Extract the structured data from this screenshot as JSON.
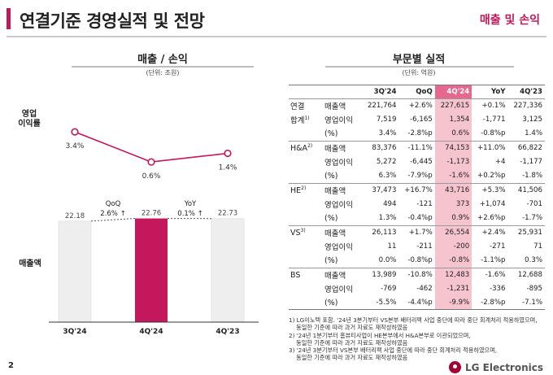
{
  "header": {
    "title": "연결기준 경영실적 및 전망",
    "tag": "매출 및 손익"
  },
  "left": {
    "title": "매출 / 손익",
    "unit": "(단위: 조원)",
    "op_label_1": "영업",
    "op_label_2": "이익률",
    "sales_label": "매출액",
    "margins": [
      "3.4%",
      "0.6%",
      "1.4%"
    ],
    "bars": [
      {
        "label": "3Q'24",
        "value_text": "22.18",
        "value": 22.18
      },
      {
        "label": "4Q'24",
        "value_text": "22.76",
        "value": 22.76
      },
      {
        "label": "4Q'23",
        "value_text": "22.73",
        "value": 22.73
      }
    ],
    "qoq_label": "QoQ",
    "qoq_value": "2.6% ↑",
    "yoy_label": "YoY",
    "yoy_value": "0.1% ↑"
  },
  "chart_data": [
    {
      "type": "line",
      "x": [
        "3Q'24",
        "4Q'24",
        "4Q'23"
      ],
      "values": [
        3.4,
        0.6,
        1.4
      ]
    },
    {
      "type": "bar",
      "categories": [
        "3Q'24",
        "4Q'24",
        "4Q'23"
      ],
      "values": [
        22.18,
        22.76,
        22.73
      ]
    }
  ],
  "colors": {
    "accent": "#c0185b",
    "bar_gray": "#eeeeee",
    "bar_highlight": "#c4185c",
    "table_highlight": "#f6c4cf"
  },
  "right": {
    "title": "부문별 실적",
    "unit": "(단위: 억원)",
    "headers": [
      "3Q'24",
      "QoQ",
      "4Q'24",
      "YoY",
      "4Q'23"
    ],
    "groups": [
      {
        "name": "연결",
        "name2": "합계",
        "sup": "1)",
        "rows": [
          {
            "item": "매출액",
            "v": [
              "221,764",
              "+2.6%",
              "227,615",
              "+0.1%",
              "227,336"
            ]
          },
          {
            "item": "영업이익",
            "v": [
              "7,519",
              "-6,165",
              "1,354",
              "-1,771",
              "3,125"
            ]
          },
          {
            "item": "(%)",
            "v": [
              "3.4%",
              "-2.8%p",
              "0.6%",
              "-0.8%p",
              "1.4%"
            ]
          }
        ]
      },
      {
        "name": "H&A",
        "sup": "2)",
        "rows": [
          {
            "item": "매출액",
            "v": [
              "83,376",
              "-11.1%",
              "74,153",
              "+11.0%",
              "66,822"
            ]
          },
          {
            "item": "영업이익",
            "v": [
              "5,272",
              "-6,445",
              "-1,173",
              "+4",
              "-1,177"
            ]
          },
          {
            "item": "(%)",
            "v": [
              "6.3%",
              "-7.9%p",
              "-1.6%",
              "+0.2%p",
              "-1.8%"
            ]
          }
        ]
      },
      {
        "name": "HE",
        "sup": "2)",
        "rows": [
          {
            "item": "매출액",
            "v": [
              "37,473",
              "+16.7%",
              "43,716",
              "+5.3%",
              "41,506"
            ]
          },
          {
            "item": "영업이익",
            "v": [
              "494",
              "-121",
              "373",
              "+1,074",
              "-701"
            ]
          },
          {
            "item": "(%)",
            "v": [
              "1.3%",
              "-0.4%p",
              "0.9%",
              "+2.6%p",
              "-1.7%"
            ]
          }
        ]
      },
      {
        "name": "VS",
        "sup": "3)",
        "rows": [
          {
            "item": "매출액",
            "v": [
              "26,113",
              "+1.7%",
              "26,554",
              "+2.4%",
              "25,931"
            ]
          },
          {
            "item": "영업이익",
            "v": [
              "11",
              "-211",
              "-200",
              "-271",
              "71"
            ]
          },
          {
            "item": "(%)",
            "v": [
              "0.0%",
              "-0.8%p",
              "-0.8%",
              "-1.1%p",
              "0.3%"
            ]
          }
        ]
      },
      {
        "name": "BS",
        "sup": "",
        "rows": [
          {
            "item": "매출액",
            "v": [
              "13,989",
              "-10.8%",
              "12,483",
              "-1.6%",
              "12,688"
            ]
          },
          {
            "item": "영업이익",
            "v": [
              "-769",
              "-462",
              "-1,231",
              "-336",
              "-895"
            ]
          },
          {
            "item": "(%)",
            "v": [
              "-5.5%",
              "-4.4%p",
              "-9.9%",
              "-2.8%p",
              "-7.1%"
            ]
          }
        ]
      }
    ],
    "notes": [
      "1) LG이노텍 포함. '24년 3분기부터 VS본부 배터리팩 사업 중단에 따라 중단 회계처리 적용하였으며,",
      "    동일한 기준에 따라 과거 자료도 재작성하였음",
      "2) '24년 1분기부터 홈뷰티사업이 HE본부에서 H&A본부로 이관되었으며,",
      "    동일한 기준에 따라 과거 자료도 재작성하였음",
      "3) '24년 3분기부터 VS본부 배터리팩 사업 중단에 따라 중단 회계처리 적용하였으며,",
      "    동일한 기준에 따라 과거 자료도 재작성하였음"
    ]
  },
  "footer": {
    "page": "2",
    "brand": "LG Electronics"
  }
}
